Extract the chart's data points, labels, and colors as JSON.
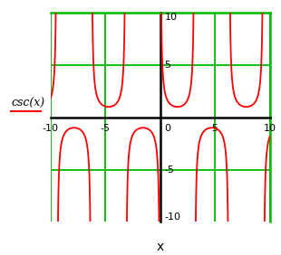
{
  "title": "",
  "xlabel": "x",
  "ylabel_text": "csc(x)",
  "xlim": [
    -10,
    10
  ],
  "ylim": [
    -10,
    10
  ],
  "clip_val": 10,
  "xticks": [
    -10,
    -5,
    5,
    10
  ],
  "yticks": [
    -5,
    5
  ],
  "ytick_labels_right": [
    "5",
    "10"
  ],
  "function_color": "#ff0000",
  "axes_color": "#000000",
  "border_color": "#00bb00",
  "grid_color": "#00bb00",
  "background_color": "#ffffff",
  "function_linewidth": 1.3,
  "border_linewidth": 1.8,
  "axes_linewidth": 1.8,
  "grid_linewidth": 1.3,
  "eps": 0.06,
  "ylabel_line_color": "#ff0000",
  "tick_fontsize": 8,
  "xlabel_fontsize": 10
}
